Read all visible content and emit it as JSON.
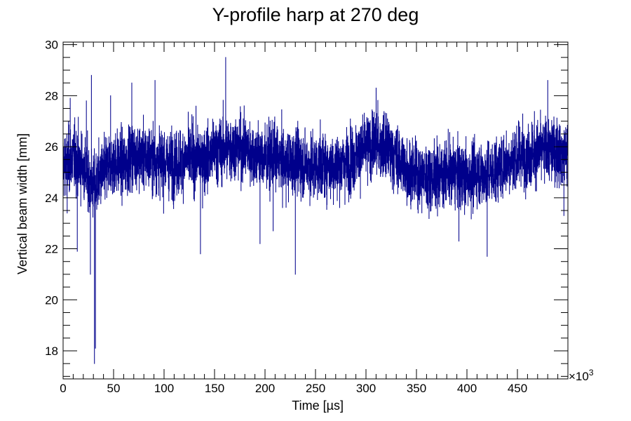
{
  "chart_data": {
    "type": "line",
    "title": "Y-profile harp at 270 deg",
    "xlabel": "Time [µs]",
    "ylabel": "Vertical beam width [mm]",
    "x_multiplier": "×10",
    "x_multiplier_exponent": "3",
    "xlim": [
      0,
      500
    ],
    "ylim": [
      16.9,
      30.1
    ],
    "x_ticks": [
      0,
      50,
      100,
      150,
      200,
      250,
      300,
      350,
      400,
      450
    ],
    "x_tick_labels": [
      "0",
      "50",
      "100",
      "150",
      "200",
      "250",
      "300",
      "350",
      "400",
      "450"
    ],
    "y_ticks": [
      18,
      20,
      22,
      24,
      26,
      28,
      30
    ],
    "y_tick_labels": [
      "18",
      "20",
      "22",
      "24",
      "26",
      "28",
      "30"
    ],
    "grid": false,
    "legend": false,
    "line_color": "#00008b",
    "series": [
      {
        "x": [
          0,
          10,
          20,
          30,
          40,
          50,
          60,
          70,
          80,
          90,
          100,
          110,
          120,
          130,
          140,
          150,
          160,
          170,
          180,
          190,
          200,
          210,
          220,
          230,
          240,
          250,
          260,
          270,
          280,
          290,
          300,
          310,
          320,
          330,
          340,
          350,
          360,
          370,
          380,
          390,
          400,
          410,
          420,
          430,
          440,
          450,
          460,
          470,
          480,
          490,
          500
        ],
        "values": [
          25.3,
          25.6,
          25.2,
          24.4,
          25.0,
          25.4,
          25.3,
          25.7,
          25.6,
          25.5,
          25.4,
          25.3,
          25.5,
          25.6,
          25.5,
          25.8,
          25.9,
          26.0,
          25.9,
          25.7,
          25.5,
          25.6,
          25.3,
          25.4,
          25.3,
          25.2,
          25.3,
          25.2,
          25.4,
          25.6,
          26.0,
          26.1,
          25.9,
          25.6,
          25.1,
          24.9,
          24.8,
          24.9,
          25.0,
          24.9,
          24.8,
          25.0,
          24.9,
          25.1,
          25.4,
          25.6,
          25.7,
          25.8,
          25.9,
          25.8,
          25.8
        ],
        "spikes": [
          {
            "x": 4,
            "value": 23.4
          },
          {
            "x": 7,
            "value": 27.9
          },
          {
            "x": 14,
            "value": 21.9
          },
          {
            "x": 23,
            "value": 27.8
          },
          {
            "x": 27,
            "value": 21.0
          },
          {
            "x": 28,
            "value": 28.8
          },
          {
            "x": 31,
            "value": 17.5
          },
          {
            "x": 32,
            "value": 18.1
          },
          {
            "x": 47,
            "value": 28.0
          },
          {
            "x": 68,
            "value": 28.5
          },
          {
            "x": 91,
            "value": 28.6
          },
          {
            "x": 136,
            "value": 21.8
          },
          {
            "x": 161,
            "value": 29.5
          },
          {
            "x": 195,
            "value": 22.2
          },
          {
            "x": 208,
            "value": 22.7
          },
          {
            "x": 230,
            "value": 21.0
          },
          {
            "x": 310,
            "value": 28.3
          },
          {
            "x": 392,
            "value": 22.3
          },
          {
            "x": 420,
            "value": 21.7
          },
          {
            "x": 480,
            "value": 28.6
          },
          {
            "x": 496,
            "value": 23.3
          }
        ]
      }
    ]
  }
}
